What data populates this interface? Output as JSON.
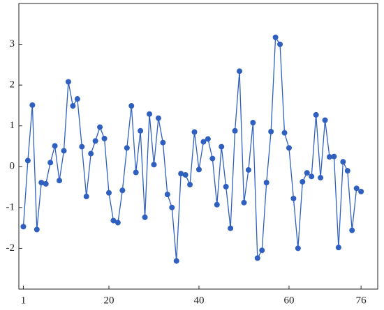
{
  "chart_data": {
    "type": "line",
    "x": [
      1,
      2,
      3,
      4,
      5,
      6,
      7,
      8,
      9,
      10,
      11,
      12,
      13,
      14,
      15,
      16,
      17,
      18,
      19,
      20,
      21,
      22,
      23,
      24,
      25,
      26,
      27,
      28,
      29,
      30,
      31,
      32,
      33,
      34,
      35,
      36,
      37,
      38,
      39,
      40,
      41,
      42,
      43,
      44,
      45,
      46,
      47,
      48,
      49,
      50,
      51,
      52,
      53,
      54,
      55,
      56,
      57,
      58,
      59,
      60,
      61,
      62,
      63,
      64,
      65,
      66,
      67,
      68,
      69,
      70,
      71,
      72,
      73,
      74,
      75,
      76
    ],
    "series": [
      {
        "color": "#2f5fbf",
        "values": [
          -1.47,
          0.15,
          1.51,
          -1.54,
          -0.39,
          -0.42,
          0.1,
          0.51,
          -0.34,
          0.39,
          2.08,
          1.49,
          1.66,
          0.49,
          -0.73,
          0.32,
          0.63,
          0.97,
          0.69,
          -0.64,
          -1.32,
          -1.37,
          -0.58,
          0.46,
          1.49,
          -0.14,
          0.88,
          -1.24,
          1.29,
          0.05,
          1.19,
          0.59,
          -0.68,
          -1.0,
          -2.31,
          -0.17,
          -0.2,
          -0.44,
          0.85,
          -0.07,
          0.61,
          0.68,
          0.2,
          -0.93,
          0.49,
          -0.49,
          -1.51,
          0.88,
          2.34,
          -0.88,
          -0.08,
          1.08,
          -2.24,
          -2.05,
          -0.39,
          0.86,
          3.17,
          3.0,
          0.83,
          0.46,
          -0.78,
          -2.0,
          -0.37,
          -0.15,
          -0.24,
          1.27,
          -0.27,
          1.14,
          0.24,
          0.25,
          -1.98,
          0.12,
          -0.1,
          -1.56,
          -0.53,
          -0.61
        ]
      }
    ],
    "xlim": [
      0,
      79.7
    ],
    "ylim": [
      -3,
      4
    ],
    "xticks": [
      1,
      20,
      40,
      60,
      76
    ],
    "yticks": [
      -2,
      -1,
      0,
      1,
      2,
      3
    ]
  }
}
